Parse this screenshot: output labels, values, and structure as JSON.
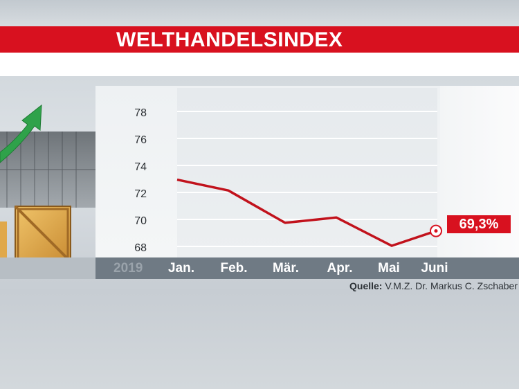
{
  "title": "WELTHANDELSINDEX",
  "source_label": "Quelle:",
  "source_text": "V.M.Z. Dr. Markus C. Zschaber",
  "year_label": "2019",
  "badge_value": "69,3%",
  "colors": {
    "accent": "#d8111f",
    "line": "#c1121c",
    "axis_bar": "#6f7a84"
  },
  "chart_data": {
    "type": "line",
    "categories": [
      "Jan.",
      "Feb.",
      "Mär.",
      "Apr.",
      "Mai",
      "Juni"
    ],
    "series": [
      {
        "values": [
          73.1,
          72.3,
          69.9,
          70.3,
          68.2,
          69.3
        ]
      }
    ],
    "y_ticks": [
      "78",
      "76",
      "74",
      "72",
      "70",
      "68"
    ],
    "ylim": [
      68,
      79
    ],
    "grid": true
  }
}
